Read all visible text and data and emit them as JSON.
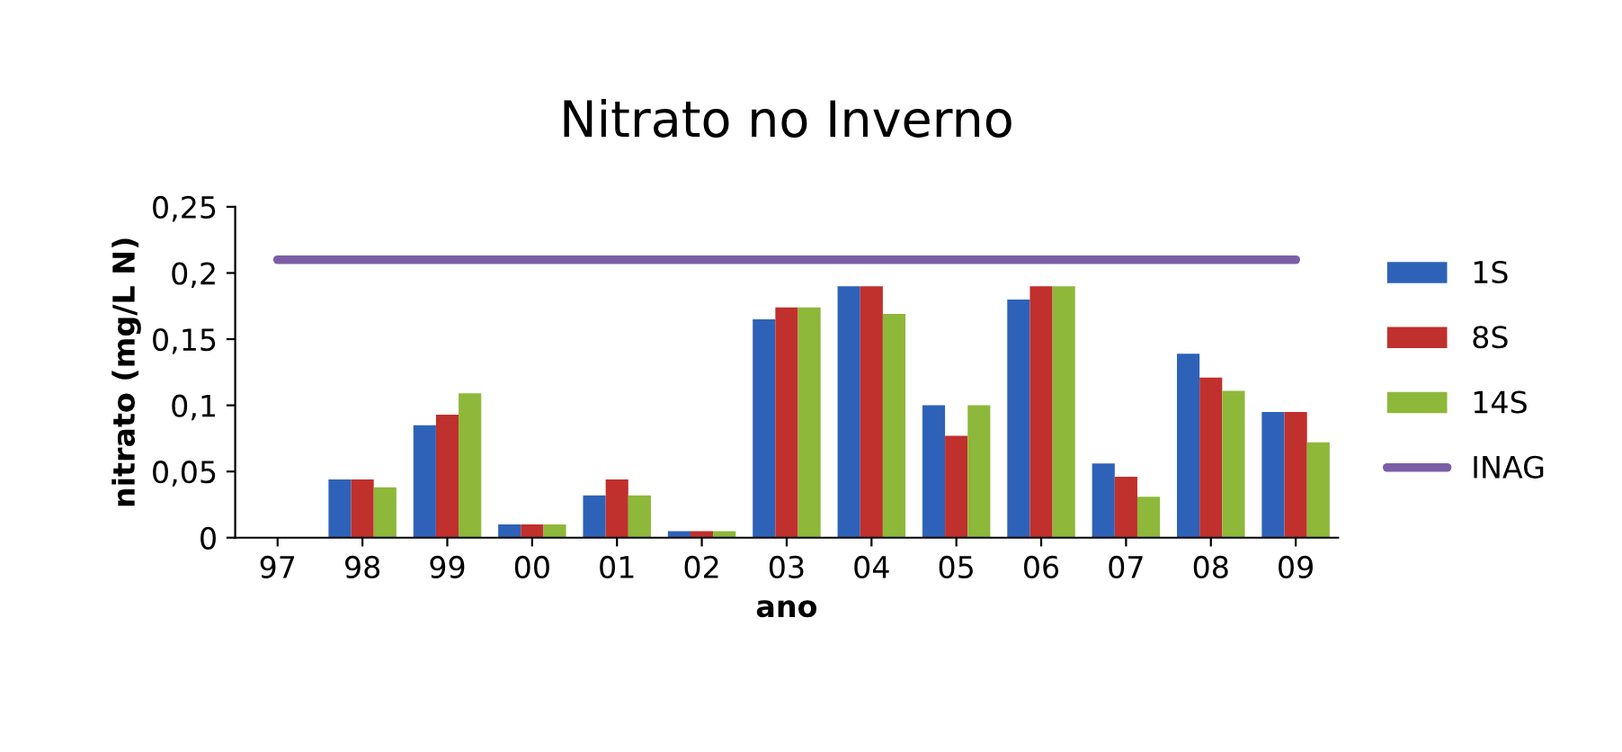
{
  "chart_data": {
    "type": "bar",
    "title": "Nitrato no Inverno",
    "xlabel": "ano",
    "ylabel": "nitrato (mg/L N)",
    "categories": [
      "97",
      "98",
      "99",
      "00",
      "01",
      "02",
      "03",
      "04",
      "05",
      "06",
      "07",
      "08",
      "09"
    ],
    "series": [
      {
        "name": "1S",
        "color": "#2e62b8",
        "values": [
          null,
          0.044,
          0.085,
          0.01,
          0.032,
          0.005,
          0.165,
          0.19,
          0.1,
          0.18,
          0.056,
          0.139,
          0.095
        ]
      },
      {
        "name": "8S",
        "color": "#c0302c",
        "values": [
          null,
          0.044,
          0.093,
          0.01,
          0.044,
          0.005,
          0.174,
          0.19,
          0.077,
          0.19,
          0.046,
          0.121,
          0.095
        ]
      },
      {
        "name": "14S",
        "color": "#8db83a",
        "values": [
          null,
          0.038,
          0.109,
          0.01,
          0.032,
          0.005,
          0.174,
          0.169,
          0.1,
          0.19,
          0.031,
          0.111,
          0.072
        ]
      },
      {
        "name": "INAG",
        "color": "#7b5ea7",
        "type": "line",
        "values": [
          0.21,
          0.21,
          0.21,
          0.21,
          0.21,
          0.21,
          0.21,
          0.21,
          0.21,
          0.21,
          0.21,
          0.21,
          0.21
        ]
      }
    ],
    "ylim": [
      0,
      0.25
    ],
    "yticks": [
      {
        "value": 0,
        "label": "0"
      },
      {
        "value": 0.05,
        "label": "0,05"
      },
      {
        "value": 0.1,
        "label": "0,1"
      },
      {
        "value": 0.15,
        "label": "0,15"
      },
      {
        "value": 0.2,
        "label": "0,2"
      },
      {
        "value": 0.25,
        "label": "0,25"
      }
    ],
    "grid": false,
    "legend": "right"
  }
}
